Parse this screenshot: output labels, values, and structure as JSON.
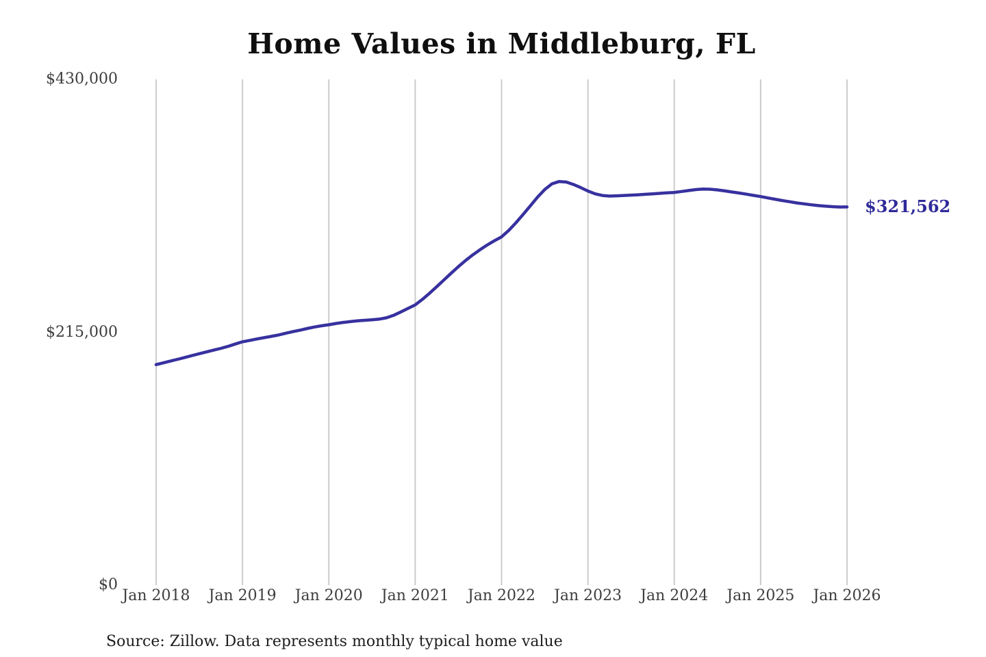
{
  "source_note": "Source: Zillow. Data represents monthly typical home value",
  "chart_data": {
    "type": "line",
    "title": "Home Values in Middleburg, FL",
    "xlabel": "",
    "ylabel": "",
    "x_start": "Jan 2018",
    "x_end": "Jan 2026",
    "frequency": "monthly",
    "x_tick_labels": [
      "Jan 2018",
      "Jan 2019",
      "Jan 2020",
      "Jan 2021",
      "Jan 2022",
      "Jan 2023",
      "Jan 2024",
      "Jan 2025",
      "Jan 2026"
    ],
    "y_ticks": [
      0,
      215000,
      430000
    ],
    "y_tick_labels": [
      "$0",
      "$215,000",
      "$430,000"
    ],
    "ylim": [
      0,
      430000
    ],
    "grid": "vertical-only",
    "legend": "none",
    "line_color": "#37319f",
    "end_label": "$321,562",
    "end_value": 321562,
    "series": [
      {
        "name": "Typical home value",
        "values": [
          187500,
          189000,
          190500,
          192000,
          193600,
          195200,
          196800,
          198300,
          199800,
          201300,
          203000,
          205000,
          206900,
          208100,
          209300,
          210400,
          211500,
          212700,
          214200,
          215500,
          216800,
          218200,
          219500,
          220500,
          221400,
          222500,
          223400,
          224100,
          224700,
          225200,
          225600,
          226200,
          227300,
          229400,
          232300,
          235300,
          238300,
          243000,
          248200,
          253800,
          259500,
          265200,
          270800,
          276000,
          280800,
          285200,
          289200,
          292800,
          296100,
          301600,
          308100,
          315200,
          322500,
          329900,
          336400,
          341200,
          343200,
          342700,
          340600,
          338000,
          335100,
          332700,
          331300,
          330800,
          331000,
          331300,
          331600,
          331900,
          332300,
          332700,
          333100,
          333500,
          333900,
          334700,
          335500,
          336300,
          336800,
          336600,
          336000,
          335200,
          334300,
          333400,
          332400,
          331400,
          330400,
          329200,
          328100,
          327000,
          326000,
          325000,
          324200,
          323400,
          322700,
          322200,
          321800,
          321500,
          321562
        ]
      }
    ]
  }
}
